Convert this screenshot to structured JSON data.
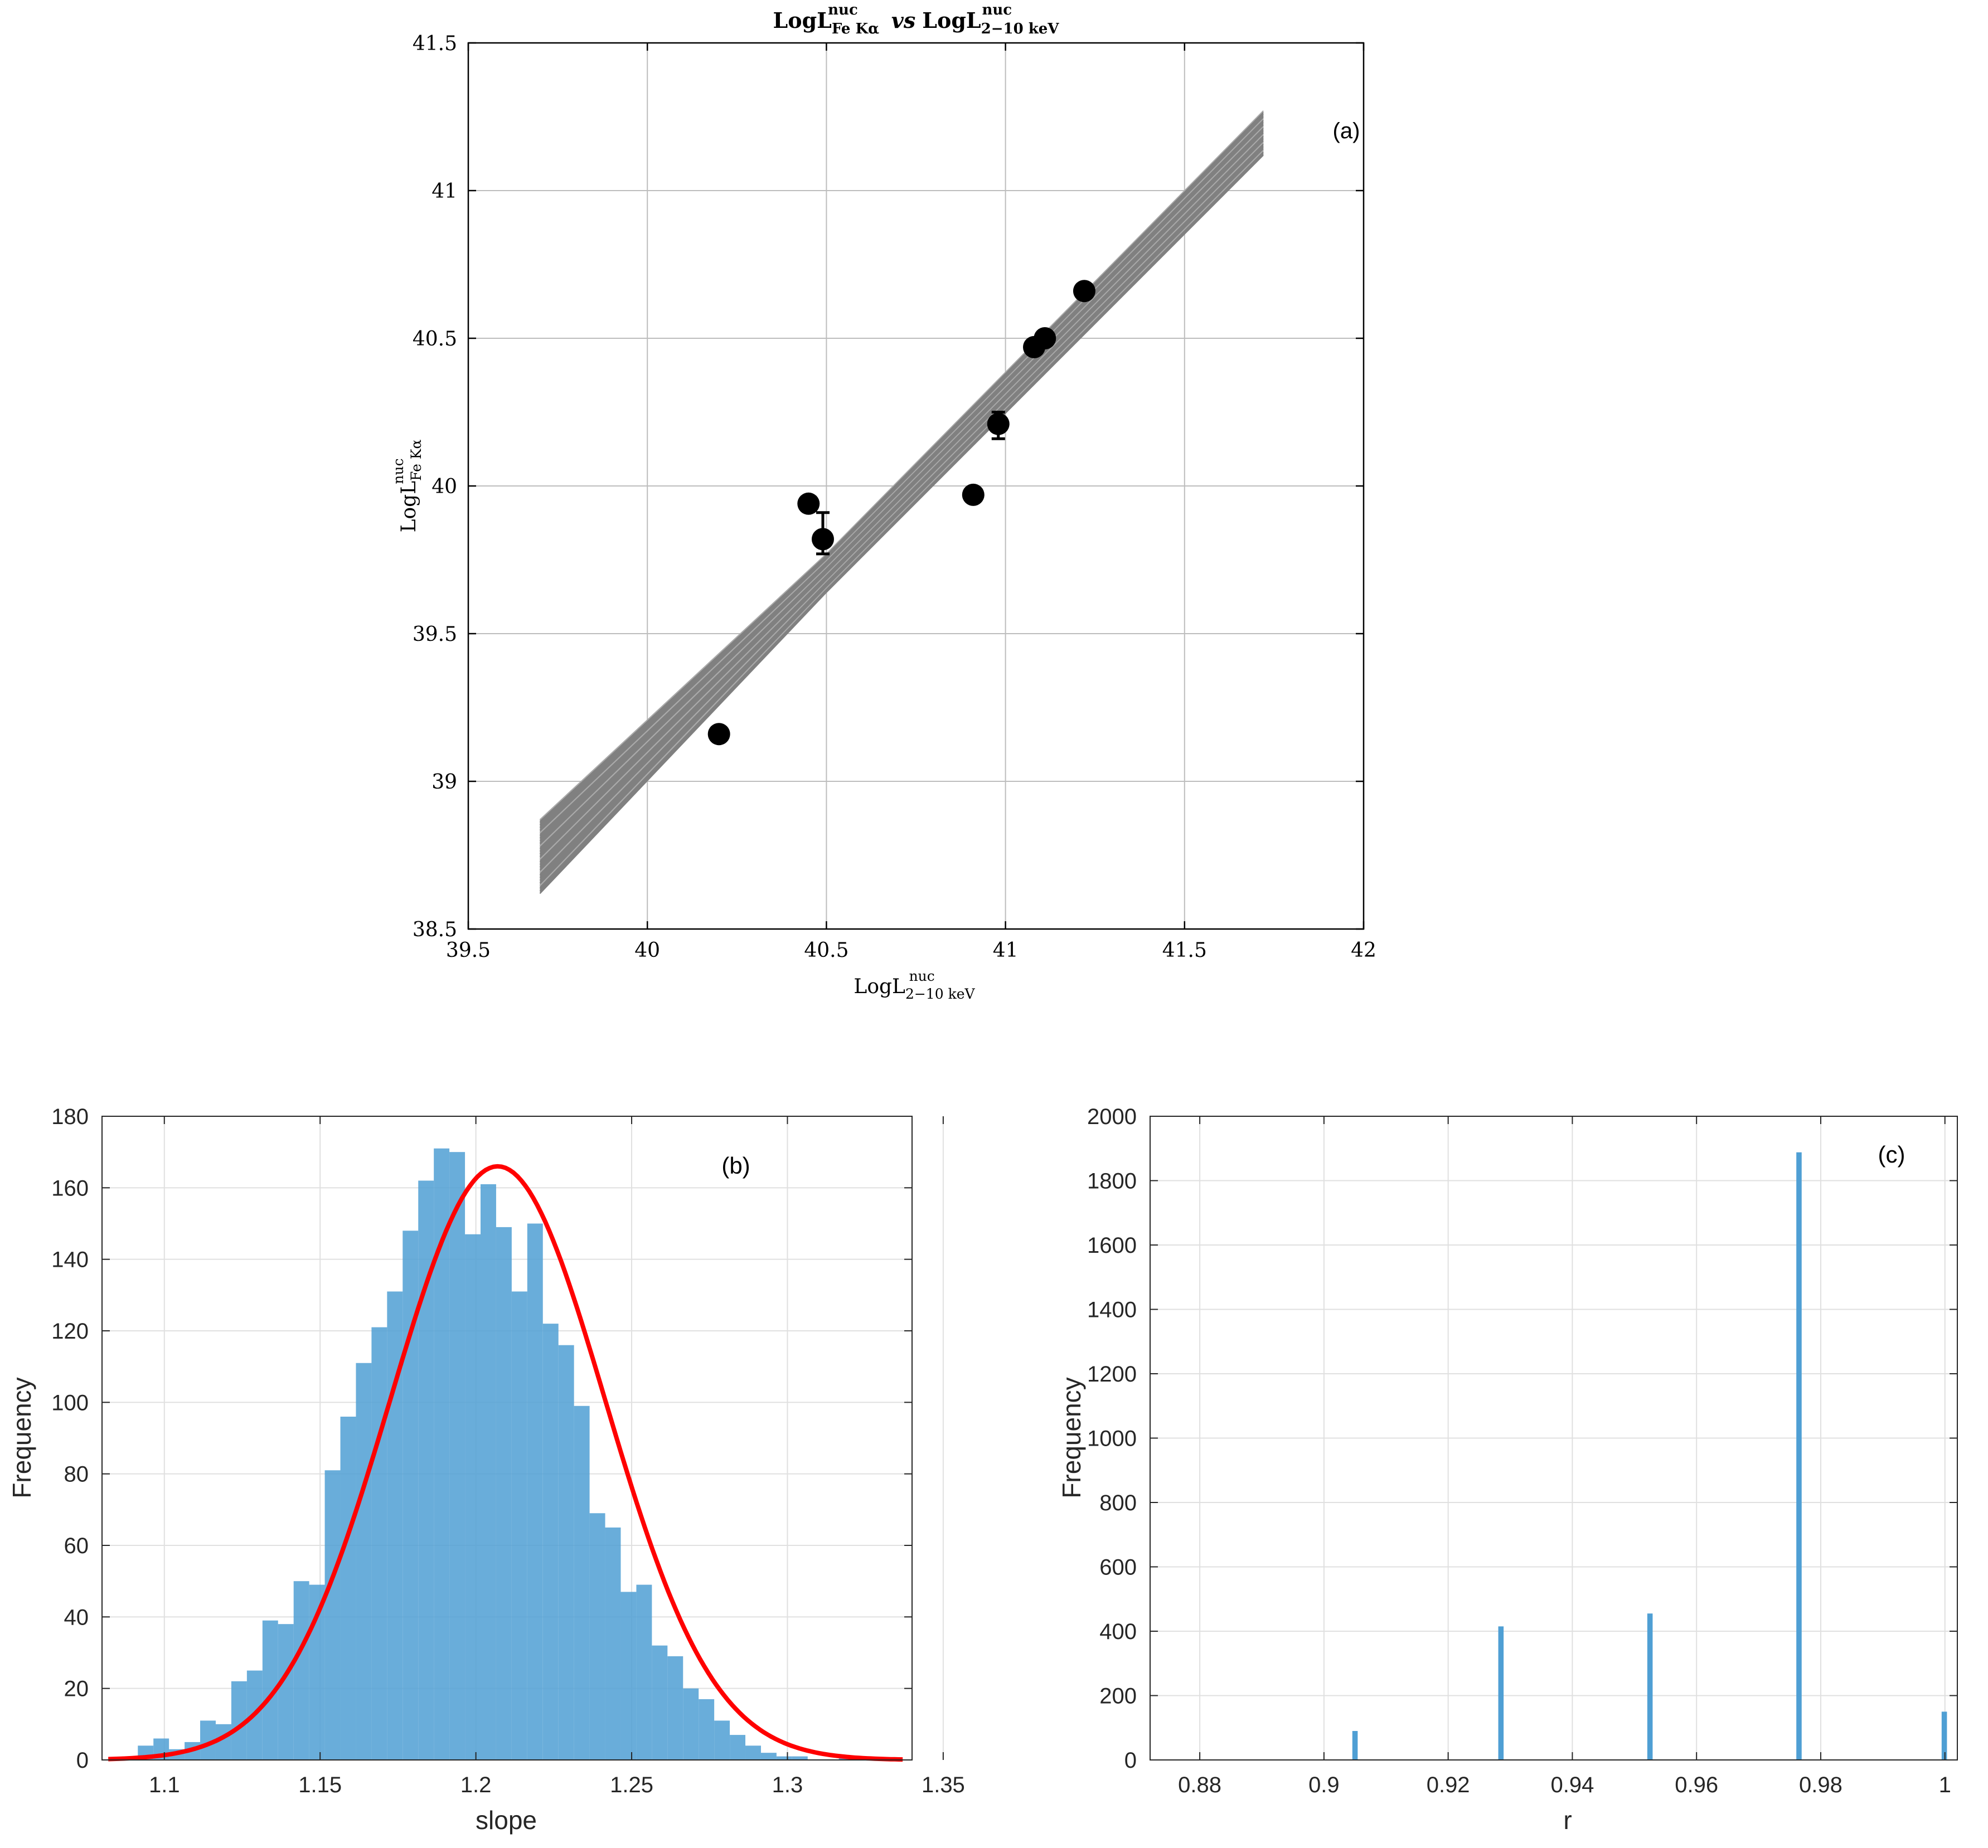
{
  "figure": {
    "panels": [
      "a",
      "b",
      "c"
    ]
  },
  "chart_data": [
    {
      "type": "scatter",
      "panel_label": "(a)",
      "title": {
        "lhs_base": "LogL",
        "lhs_sup": "nuc",
        "lhs_sub": "Fe Kα",
        "vs": "vs",
        "rhs_base": "LogL",
        "rhs_sup": "nuc",
        "rhs_sub": "2−10 keV"
      },
      "xlabel": {
        "base": "LogL",
        "sup": "nuc",
        "sub": "2−10 keV"
      },
      "ylabel": {
        "base": "LogL",
        "sup": "nuc",
        "sub": "Fe Kα"
      },
      "xlim": [
        39.5,
        42
      ],
      "ylim": [
        38.5,
        41.5
      ],
      "xticks": [
        "39.5",
        "40",
        "40.5",
        "41",
        "41.5",
        "42"
      ],
      "yticks": [
        "38.5",
        "39",
        "39.5",
        "40",
        "40.5",
        "41",
        "41.5"
      ],
      "grid": true,
      "points": [
        {
          "x": 40.2,
          "y": 39.16
        },
        {
          "x": 40.45,
          "y": 39.94
        },
        {
          "x": 40.49,
          "y": 39.82,
          "err_plus": 0.09,
          "err_minus": 0.05
        },
        {
          "x": 40.91,
          "y": 39.97
        },
        {
          "x": 40.98,
          "y": 40.21,
          "err_plus": 0.04,
          "err_minus": 0.05
        },
        {
          "x": 41.08,
          "y": 40.47
        },
        {
          "x": 41.11,
          "y": 40.5
        },
        {
          "x": 41.22,
          "y": 40.66
        }
      ],
      "fit_band": {
        "x_range": [
          39.7,
          41.72
        ],
        "upper": [
          [
            39.7,
            38.87
          ],
          [
            40.5,
            39.77
          ],
          [
            41.72,
            41.27
          ]
        ],
        "lower": [
          [
            39.7,
            38.62
          ],
          [
            40.5,
            39.64
          ],
          [
            41.72,
            41.12
          ]
        ],
        "color": "#808080"
      }
    },
    {
      "type": "bar",
      "panel_label": "(b)",
      "xlabel": "slope",
      "ylabel": "Frequency",
      "xlim": [
        1.08,
        1.34
      ],
      "ylim": [
        0,
        180
      ],
      "xticks": [
        "1.1",
        "1.15",
        "1.2",
        "1.25",
        "1.3",
        "1.35"
      ],
      "yticks": [
        "0",
        "20",
        "40",
        "60",
        "80",
        "100",
        "120",
        "140",
        "160",
        "180"
      ],
      "grid": true,
      "bar_color": "#4f9fd4",
      "bin_start": 1.0815,
      "bin_width": 0.005,
      "values": [
        0,
        1,
        4,
        6,
        3,
        5,
        11,
        10,
        22,
        25,
        39,
        38,
        50,
        49,
        81,
        96,
        111,
        121,
        131,
        148,
        162,
        171,
        170,
        147,
        161,
        149,
        131,
        150,
        122,
        116,
        99,
        69,
        65,
        47,
        49,
        32,
        29,
        20,
        17,
        11,
        7,
        4,
        2,
        1,
        1,
        0,
        0,
        1,
        0,
        0
      ],
      "fit_curve": {
        "type": "normal",
        "mean": 1.207,
        "sigma": 0.0345,
        "peak": 166,
        "color": "#ff0000"
      }
    },
    {
      "type": "bar",
      "panel_label": "(c)",
      "xlabel": "r",
      "ylabel": "Frequency",
      "xlim": [
        0.872,
        1.002
      ],
      "ylim": [
        0,
        2000
      ],
      "xticks": [
        "0.88",
        "0.9",
        "0.92",
        "0.94",
        "0.96",
        "0.98",
        "1"
      ],
      "yticks": [
        "0",
        "200",
        "400",
        "600",
        "800",
        "1000",
        "1200",
        "1400",
        "1600",
        "1800",
        "2000"
      ],
      "grid": true,
      "bar_color": "#4f9fd4",
      "bar_width": 0.0005,
      "bars": [
        {
          "x": 0.905,
          "value": 90
        },
        {
          "x": 0.9285,
          "value": 415
        },
        {
          "x": 0.9525,
          "value": 455
        },
        {
          "x": 0.9765,
          "value": 1888
        },
        {
          "x": 0.9999,
          "value": 150
        }
      ]
    }
  ]
}
